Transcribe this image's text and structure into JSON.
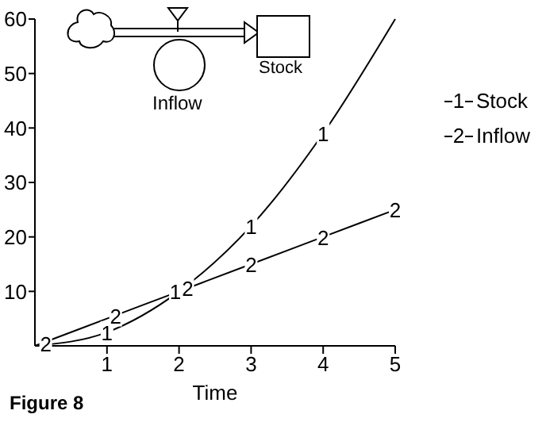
{
  "chart_data": {
    "type": "line",
    "xlabel": "Time",
    "x": [
      0,
      1,
      2,
      3,
      4,
      5
    ],
    "series": [
      {
        "name": "Stock",
        "color": "#000000",
        "values": [
          0,
          2.5,
          10,
          22,
          39,
          60
        ]
      },
      {
        "name": "Inflow",
        "color": "#000000",
        "values": [
          0,
          5,
          10,
          15,
          20,
          25
        ]
      }
    ],
    "xlim": [
      0,
      5
    ],
    "xticks": [
      1,
      2,
      3,
      4,
      5
    ],
    "ylim": [
      0,
      60
    ],
    "yticks": [
      10,
      20,
      30,
      40,
      50,
      60
    ],
    "legend": "right",
    "grid": false,
    "annotations": [
      "Stock",
      "Inflow",
      "Figure 8",
      "1",
      "2",
      {
        "text": "1",
        "x": 1,
        "y": 2.5
      },
      {
        "text": "1",
        "x": 1.95,
        "y": 10
      },
      {
        "text": "1",
        "x": 3,
        "y": 22
      },
      {
        "text": "1",
        "x": 4,
        "y": 39
      },
      {
        "text": "2",
        "x": 0.15,
        "y": 0.5
      },
      {
        "text": "2",
        "x": 1.12,
        "y": 5.6
      },
      {
        "text": "2",
        "x": 2.12,
        "y": 10.6
      },
      {
        "text": "2",
        "x": 3,
        "y": 15
      },
      {
        "text": "2",
        "x": 4,
        "y": 20
      },
      {
        "text": "2",
        "x": 5,
        "y": 25
      }
    ]
  }
}
